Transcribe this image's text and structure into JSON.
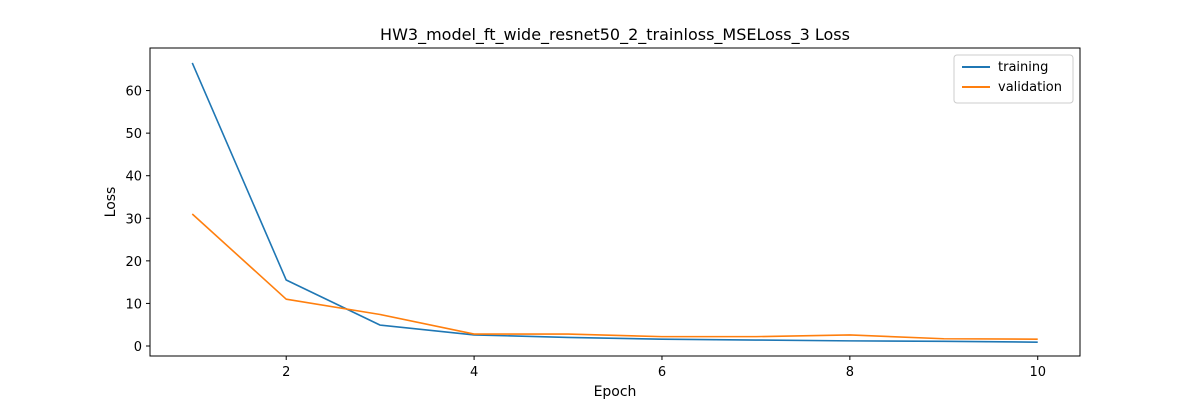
{
  "chart_data": {
    "type": "line",
    "title": "HW3_model_ft_wide_resnet50_2_trainloss_MSELoss_3 Loss",
    "xlabel": "Epoch",
    "ylabel": "Loss",
    "x": [
      1,
      2,
      3,
      4,
      5,
      6,
      7,
      8,
      9,
      10
    ],
    "xlim": [
      0.55,
      10.45
    ],
    "ylim": [
      -2.35,
      70.0
    ],
    "xticks": [
      2,
      4,
      6,
      8,
      10
    ],
    "yticks": [
      0,
      10,
      20,
      30,
      40,
      50,
      60
    ],
    "grid": false,
    "legend_position": "top-right",
    "series": [
      {
        "name": "training",
        "color": "#1f77b4",
        "values": [
          66.5,
          15.5,
          4.9,
          2.6,
          2.0,
          1.6,
          1.4,
          1.2,
          1.1,
          0.9
        ]
      },
      {
        "name": "validation",
        "color": "#ff7f0e",
        "values": [
          31.0,
          11.0,
          7.4,
          2.8,
          2.8,
          2.2,
          2.2,
          2.6,
          1.7,
          1.6
        ]
      }
    ]
  }
}
